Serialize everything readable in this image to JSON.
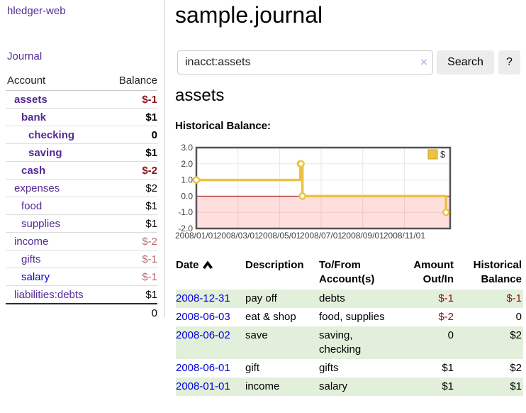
{
  "theme": {
    "link_purple": "#542a94",
    "link_blue": "#0000dd",
    "negative_strong": "#8c1016",
    "negative_soft": "#ba696e",
    "stripe_green": "#e2efda",
    "button_bg": "#ececec",
    "chart_line": "#edc240",
    "chart_fill_negative": "rgba(255,0,0,0.13)",
    "zero_line": "#8b0000"
  },
  "sidebar": {
    "brand": "hledger-web",
    "nav_journal": "Journal",
    "accounts": {
      "header_account": "Account",
      "header_balance": "Balance",
      "rows": [
        {
          "label": "assets",
          "balance": "$-1",
          "indent": 1,
          "bold": true,
          "negative": "strong",
          "link": "purple"
        },
        {
          "label": "bank",
          "balance": "$1",
          "indent": 2,
          "bold": true,
          "negative": null,
          "link": "purple"
        },
        {
          "label": "checking",
          "balance": "0",
          "indent": 3,
          "bold": true,
          "negative": null,
          "link": "purple"
        },
        {
          "label": "saving",
          "balance": "$1",
          "indent": 3,
          "bold": true,
          "negative": null,
          "link": "purple"
        },
        {
          "label": "cash",
          "balance": "$-2",
          "indent": 2,
          "bold": true,
          "negative": "strong",
          "link": "purple"
        },
        {
          "label": "expenses",
          "balance": "$2",
          "indent": 1,
          "bold": false,
          "negative": null,
          "link": "purple"
        },
        {
          "label": "food",
          "balance": "$1",
          "indent": 2,
          "bold": false,
          "negative": null,
          "link": "purple"
        },
        {
          "label": "supplies",
          "balance": "$1",
          "indent": 2,
          "bold": false,
          "negative": null,
          "link": "purple"
        },
        {
          "label": "income",
          "balance": "$-2",
          "indent": 1,
          "bold": false,
          "negative": "soft",
          "link": "purple"
        },
        {
          "label": "gifts",
          "balance": "$-1",
          "indent": 2,
          "bold": false,
          "negative": "soft",
          "link": "purple"
        },
        {
          "label": "salary",
          "balance": "$-1",
          "indent": 2,
          "bold": false,
          "negative": "soft",
          "link": "blue"
        },
        {
          "label": "liabilities:debts",
          "balance": "$1",
          "indent": 1,
          "bold": false,
          "negative": null,
          "link": "purple"
        }
      ],
      "total": "0"
    }
  },
  "main": {
    "title": "sample.journal",
    "search": {
      "value": "inacct:assets",
      "clear_icon": "×",
      "search_button": "Search",
      "help_button": "?"
    },
    "account_heading": "assets",
    "section_label": "Historical Balance:"
  },
  "chart_data": {
    "type": "line",
    "title": "Historical Balance:",
    "x_unit": "months since 2008-01-01",
    "xlim": [
      0,
      12.2
    ],
    "ylim": [
      -2,
      3
    ],
    "yticks": [
      3.0,
      2.0,
      1.0,
      0.0,
      -1.0,
      -2.0
    ],
    "xticks": [
      {
        "label": "2008/01/01",
        "x": 0
      },
      {
        "label": "2008/03/01",
        "x": 2
      },
      {
        "label": "2008/05/01",
        "x": 4
      },
      {
        "label": "2008/07/01",
        "x": 6
      },
      {
        "label": "2008/09/01",
        "x": 8
      },
      {
        "label": "2008/11/01",
        "x": 10
      }
    ],
    "series": [
      {
        "name": "$",
        "color": "#edc240",
        "step": true,
        "points": [
          {
            "date": "2008-01-01",
            "x": 0,
            "y": 1
          },
          {
            "date": "2008-06-01",
            "x": 5.0,
            "y": 2
          },
          {
            "date": "2008-06-02",
            "x": 5.03,
            "y": 2
          },
          {
            "date": "2008-06-03",
            "x": 5.1,
            "y": 0
          },
          {
            "date": "2008-12-31",
            "x": 12.0,
            "y": -1
          }
        ]
      }
    ],
    "legend": {
      "label": "$",
      "position": "top-right"
    },
    "grid": true,
    "negative_region_shaded": true
  },
  "register": {
    "headers": {
      "date": "Date",
      "description": "Description",
      "accounts": "To/From Account(s)",
      "amount": "Amount Out/In",
      "balance": "Historical Balance"
    },
    "rows": [
      {
        "date": "2008-12-31",
        "description": "pay off",
        "accounts": "debts",
        "amount": "$-1",
        "balance": "$-1",
        "amount_negative": true,
        "balance_negative": true
      },
      {
        "date": "2008-06-03",
        "description": "eat & shop",
        "accounts": "food, supplies",
        "amount": "$-2",
        "balance": "0",
        "amount_negative": true,
        "balance_negative": false
      },
      {
        "date": "2008-06-02",
        "description": "save",
        "accounts": "saving,\nchecking",
        "amount": "0",
        "balance": "$2",
        "amount_negative": false,
        "balance_negative": false
      },
      {
        "date": "2008-06-01",
        "description": "gift",
        "accounts": "gifts",
        "amount": "$1",
        "balance": "$2",
        "amount_negative": false,
        "balance_negative": false
      },
      {
        "date": "2008-01-01",
        "description": "income",
        "accounts": "salary",
        "amount": "$1",
        "balance": "$1",
        "amount_negative": false,
        "balance_negative": false
      }
    ]
  }
}
